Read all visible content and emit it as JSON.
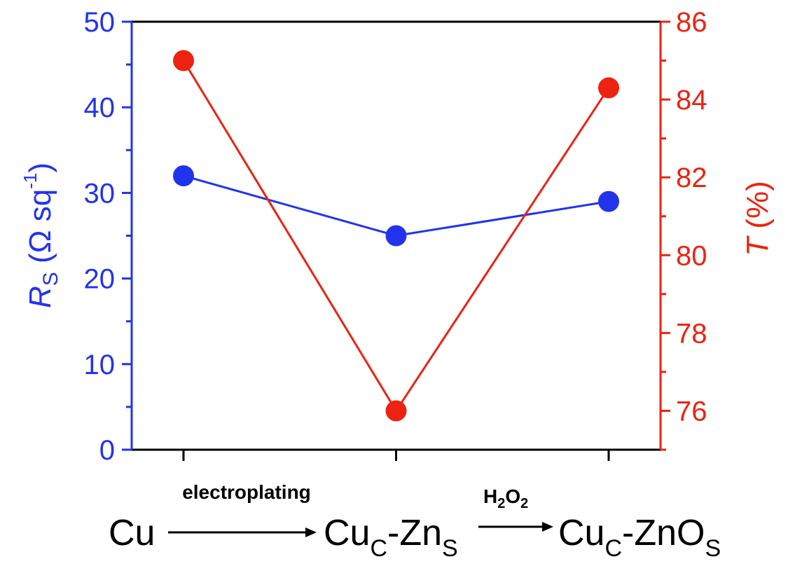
{
  "chart_data": {
    "type": "line",
    "categories": [
      "Cu",
      "Cu_C-Zn_S",
      "Cu_C-ZnO_S"
    ],
    "category_labels": [
      {
        "base": "Cu",
        "sub1": "",
        "mid": "",
        "sub2": ""
      },
      {
        "base": "Cu",
        "sub1": "C",
        "mid": "-Zn",
        "sub2": "S"
      },
      {
        "base": "Cu",
        "sub1": "C",
        "mid": "-ZnO",
        "sub2": "S"
      }
    ],
    "process_labels": {
      "step1": "electroplating",
      "step2_base": "H",
      "step2_sub1": "2",
      "step2_mid": "O",
      "step2_sub2": "2"
    },
    "left_axis": {
      "label_italic": "R",
      "label_sub": "S",
      "label_rest": " (Ω sq",
      "label_sup": "-1",
      "label_close": ")",
      "ylim": [
        0,
        50
      ],
      "ticks": [
        "0",
        "10",
        "20",
        "30",
        "40",
        "50"
      ],
      "color": "#2233ee"
    },
    "right_axis": {
      "label_italic": "T",
      "label_rest": " (%)",
      "ylim": [
        75,
        86
      ],
      "ticks": [
        "76",
        "78",
        "80",
        "82",
        "84",
        "86"
      ],
      "color": "#ee2211"
    },
    "series": [
      {
        "axis": "left",
        "values": [
          32,
          25,
          29
        ],
        "color": "#2233ee"
      },
      {
        "axis": "right",
        "values": [
          85,
          76,
          84.3
        ],
        "color": "#ee2211"
      }
    ]
  }
}
